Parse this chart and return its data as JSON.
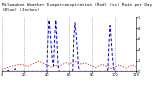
{
  "title": "Milwaukee Weather Evapotranspiration (Red) (vs) Rain per Day (Blue) (Inches)",
  "background_color": "#ffffff",
  "red_values": [
    0.04,
    0.04,
    0.05,
    0.05,
    0.06,
    0.07,
    0.07,
    0.08,
    0.09,
    0.09,
    0.1,
    0.11,
    0.11,
    0.12,
    0.12,
    0.13,
    0.13,
    0.13,
    0.12,
    0.12,
    0.11,
    0.1,
    0.1,
    0.09,
    0.1,
    0.11,
    0.12,
    0.13,
    0.14,
    0.15,
    0.16,
    0.17,
    0.18,
    0.19,
    0.18,
    0.17,
    0.16,
    0.15,
    0.14,
    0.13,
    0.12,
    0.11,
    0.1,
    0.09,
    0.08,
    0.08,
    0.09,
    0.1,
    0.11,
    0.1,
    0.09,
    0.1,
    0.11,
    0.12,
    0.13,
    0.14,
    0.15,
    0.16,
    0.15,
    0.14,
    0.13,
    0.15,
    0.16,
    0.17,
    0.18,
    0.19,
    0.18,
    0.17,
    0.16,
    0.15,
    0.14,
    0.13,
    0.14,
    0.15,
    0.16,
    0.15,
    0.14,
    0.13,
    0.12,
    0.11,
    0.1,
    0.09,
    0.08,
    0.07,
    0.08,
    0.09,
    0.1,
    0.11,
    0.12,
    0.13,
    0.12,
    0.11,
    0.1,
    0.09,
    0.08,
    0.07,
    0.06,
    0.05,
    0.06,
    0.07,
    0.08,
    0.09,
    0.1,
    0.11,
    0.12,
    0.11,
    0.1,
    0.09,
    0.08,
    0.07,
    0.06,
    0.07,
    0.08,
    0.09,
    0.1,
    0.11,
    0.12,
    0.11,
    0.1,
    0.09
  ],
  "blue_values": [
    0.0,
    0.0,
    0.0,
    0.0,
    0.0,
    0.0,
    0.02,
    0.0,
    0.0,
    0.0,
    0.0,
    0.0,
    0.05,
    0.0,
    0.0,
    0.0,
    0.0,
    0.0,
    0.0,
    0.0,
    0.0,
    0.0,
    0.0,
    0.0,
    0.0,
    0.0,
    0.0,
    0.0,
    0.0,
    0.0,
    0.0,
    0.0,
    0.0,
    0.0,
    0.0,
    0.0,
    0.0,
    0.0,
    0.0,
    0.0,
    0.0,
    0.6,
    0.95,
    0.75,
    0.45,
    0.2,
    0.1,
    0.65,
    0.95,
    0.55,
    0.1,
    0.0,
    0.0,
    0.0,
    0.0,
    0.0,
    0.0,
    0.0,
    0.0,
    0.0,
    0.0,
    0.0,
    0.0,
    0.0,
    0.65,
    0.9,
    0.7,
    0.4,
    0.1,
    0.0,
    0.0,
    0.0,
    0.0,
    0.0,
    0.0,
    0.0,
    0.0,
    0.0,
    0.0,
    0.0,
    0.0,
    0.0,
    0.0,
    0.0,
    0.0,
    0.0,
    0.0,
    0.0,
    0.0,
    0.0,
    0.0,
    0.0,
    0.0,
    0.0,
    0.0,
    0.5,
    0.85,
    0.6,
    0.3,
    0.1,
    0.0,
    0.0,
    0.0,
    0.0,
    0.0,
    0.0,
    0.0,
    0.0,
    0.0,
    0.0,
    0.0,
    0.0,
    0.0,
    0.0,
    0.0,
    0.0,
    0.0,
    0.0,
    0.0,
    0.0
  ],
  "ylim": [
    0,
    1.0
  ],
  "ytick_labels": [
    "0",
    ".2",
    ".4",
    ".6",
    ".8",
    "1"
  ],
  "ytick_values": [
    0.0,
    0.2,
    0.4,
    0.6,
    0.8,
    1.0
  ],
  "n_points": 120,
  "red_color": "#cc0000",
  "blue_color": "#0000cc",
  "grid_color": "#888888",
  "grid_positions": [
    0,
    20,
    40,
    60,
    80,
    100,
    119
  ],
  "title_fontsize": 3.0,
  "tick_fontsize": 2.5
}
